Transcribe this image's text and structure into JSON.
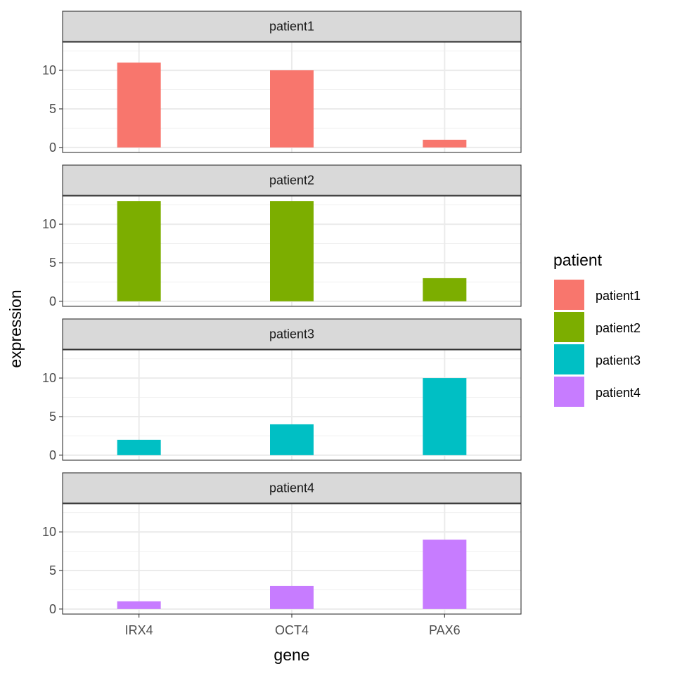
{
  "chart_data": {
    "type": "bar",
    "facet_by": "patient",
    "xlabel": "gene",
    "ylabel": "expression",
    "categories": [
      "IRX4",
      "OCT4",
      "PAX6"
    ],
    "ylim": [
      -0.65,
      13.65
    ],
    "yticks": [
      0,
      5,
      10
    ],
    "grid": true,
    "legend": {
      "title": "patient",
      "placement": "right"
    },
    "series": [
      {
        "name": "patient1",
        "color": "#F8766D",
        "values": [
          11,
          10,
          1
        ]
      },
      {
        "name": "patient2",
        "color": "#7CAE00",
        "values": [
          13,
          13,
          3
        ]
      },
      {
        "name": "patient3",
        "color": "#00BFC4",
        "values": [
          2,
          4,
          10
        ]
      },
      {
        "name": "patient4",
        "color": "#C77CFF",
        "values": [
          1,
          3,
          9
        ]
      }
    ]
  }
}
